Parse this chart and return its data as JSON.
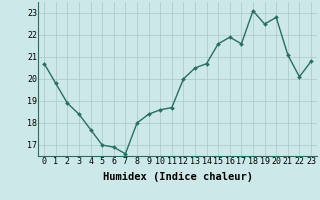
{
  "x": [
    0,
    1,
    2,
    3,
    4,
    5,
    6,
    7,
    8,
    9,
    10,
    11,
    12,
    13,
    14,
    15,
    16,
    17,
    18,
    19,
    20,
    21,
    22,
    23
  ],
  "y": [
    20.7,
    19.8,
    18.9,
    18.4,
    17.7,
    17.0,
    16.9,
    16.6,
    18.0,
    18.4,
    18.6,
    18.7,
    20.0,
    20.5,
    20.7,
    21.6,
    21.9,
    21.6,
    23.1,
    22.5,
    22.8,
    21.1,
    20.1,
    20.8
  ],
  "line_color": "#2a6e62",
  "marker": "D",
  "marker_size": 2.0,
  "line_width": 1.0,
  "bg_color": "#cce8e8",
  "grid_color": "#b0cccc",
  "xlabel": "Humidex (Indice chaleur)",
  "xlabel_fontsize": 7.5,
  "tick_fontsize": 6.0,
  "ylim": [
    16.5,
    23.5
  ],
  "yticks": [
    17,
    18,
    19,
    20,
    21,
    22,
    23
  ],
  "xticks": [
    0,
    1,
    2,
    3,
    4,
    5,
    6,
    7,
    8,
    9,
    10,
    11,
    12,
    13,
    14,
    15,
    16,
    17,
    18,
    19,
    20,
    21,
    22,
    23
  ]
}
